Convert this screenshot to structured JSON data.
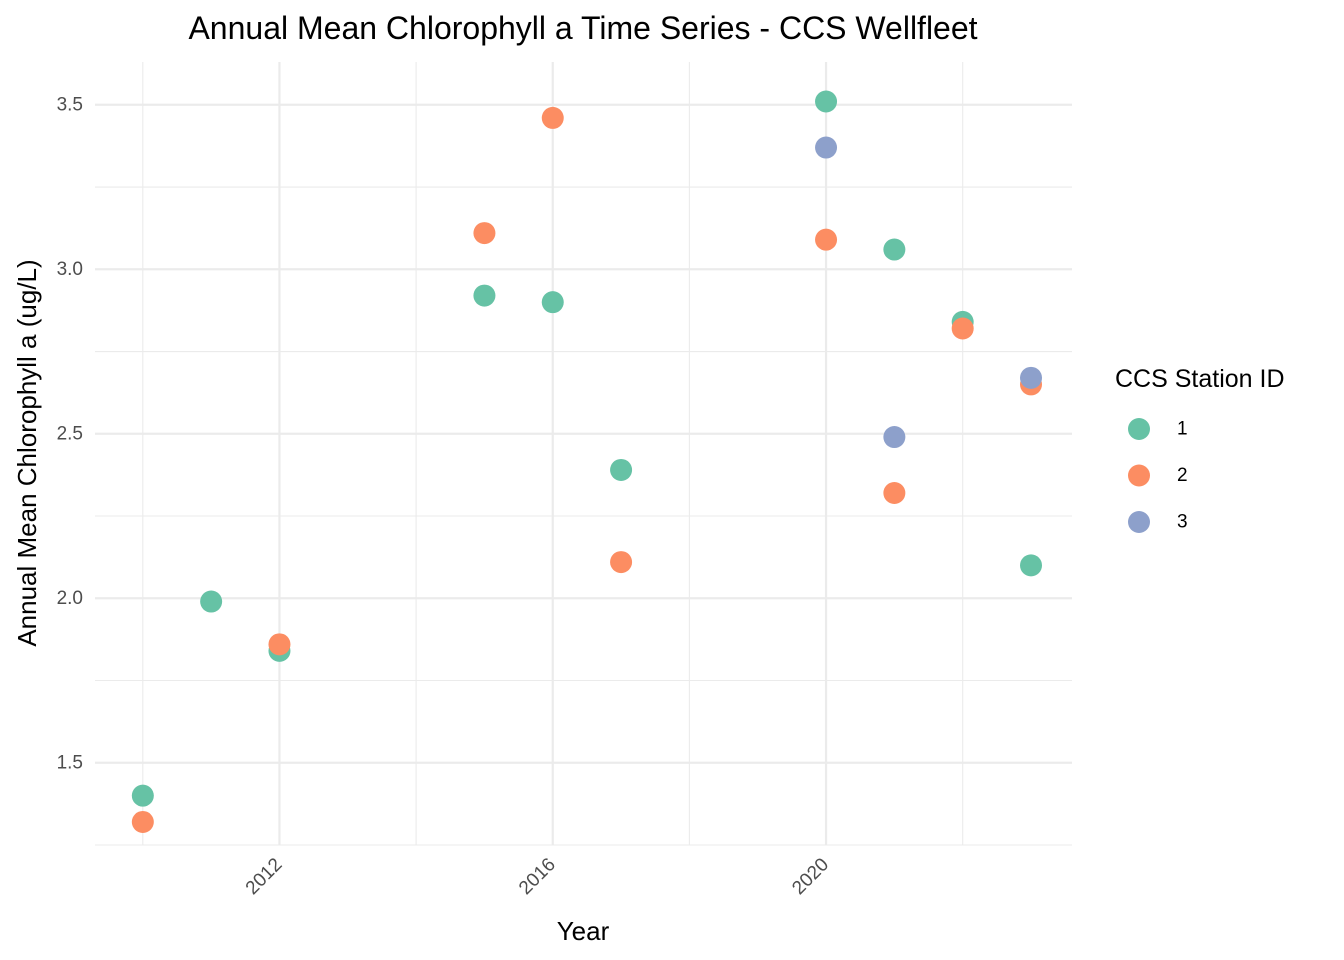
{
  "chart_data": {
    "type": "scatter",
    "title": "Annual Mean Chlorophyll a Time Series - CCS Wellfleet",
    "xlabel": "Year",
    "ylabel": "Annual Mean Chlorophyll a (ug/L)",
    "xlim": [
      2009.3,
      2023.6
    ],
    "ylim": [
      1.25,
      3.63
    ],
    "x_ticks": [
      2012,
      2016,
      2020
    ],
    "x_minor_ticks": [
      2010,
      2014,
      2018,
      2022
    ],
    "y_ticks": [
      1.5,
      2.0,
      2.5,
      3.0,
      3.5
    ],
    "y_minor_ticks": [
      1.25,
      1.75,
      2.25,
      2.75,
      3.25
    ],
    "grid": true,
    "legend_title": "CCS Station ID",
    "legend_position": "right",
    "series": [
      {
        "name": "1",
        "color": "#66c2a5",
        "points": [
          {
            "x": 2010,
            "y": 1.4
          },
          {
            "x": 2011,
            "y": 1.99
          },
          {
            "x": 2012,
            "y": 1.84
          },
          {
            "x": 2015,
            "y": 2.92
          },
          {
            "x": 2016,
            "y": 2.9
          },
          {
            "x": 2017,
            "y": 2.39
          },
          {
            "x": 2020,
            "y": 3.51
          },
          {
            "x": 2021,
            "y": 3.06
          },
          {
            "x": 2022,
            "y": 2.84
          },
          {
            "x": 2023,
            "y": 2.1
          }
        ]
      },
      {
        "name": "2",
        "color": "#fc8d62",
        "points": [
          {
            "x": 2010,
            "y": 1.32
          },
          {
            "x": 2012,
            "y": 1.86
          },
          {
            "x": 2015,
            "y": 3.11
          },
          {
            "x": 2016,
            "y": 3.46
          },
          {
            "x": 2017,
            "y": 2.11
          },
          {
            "x": 2020,
            "y": 3.09
          },
          {
            "x": 2021,
            "y": 2.32
          },
          {
            "x": 2022,
            "y": 2.82
          },
          {
            "x": 2023,
            "y": 2.65
          }
        ]
      },
      {
        "name": "3",
        "color": "#8da0cb",
        "points": [
          {
            "x": 2020,
            "y": 3.37
          },
          {
            "x": 2021,
            "y": 2.49
          },
          {
            "x": 2023,
            "y": 2.67
          }
        ]
      }
    ]
  }
}
